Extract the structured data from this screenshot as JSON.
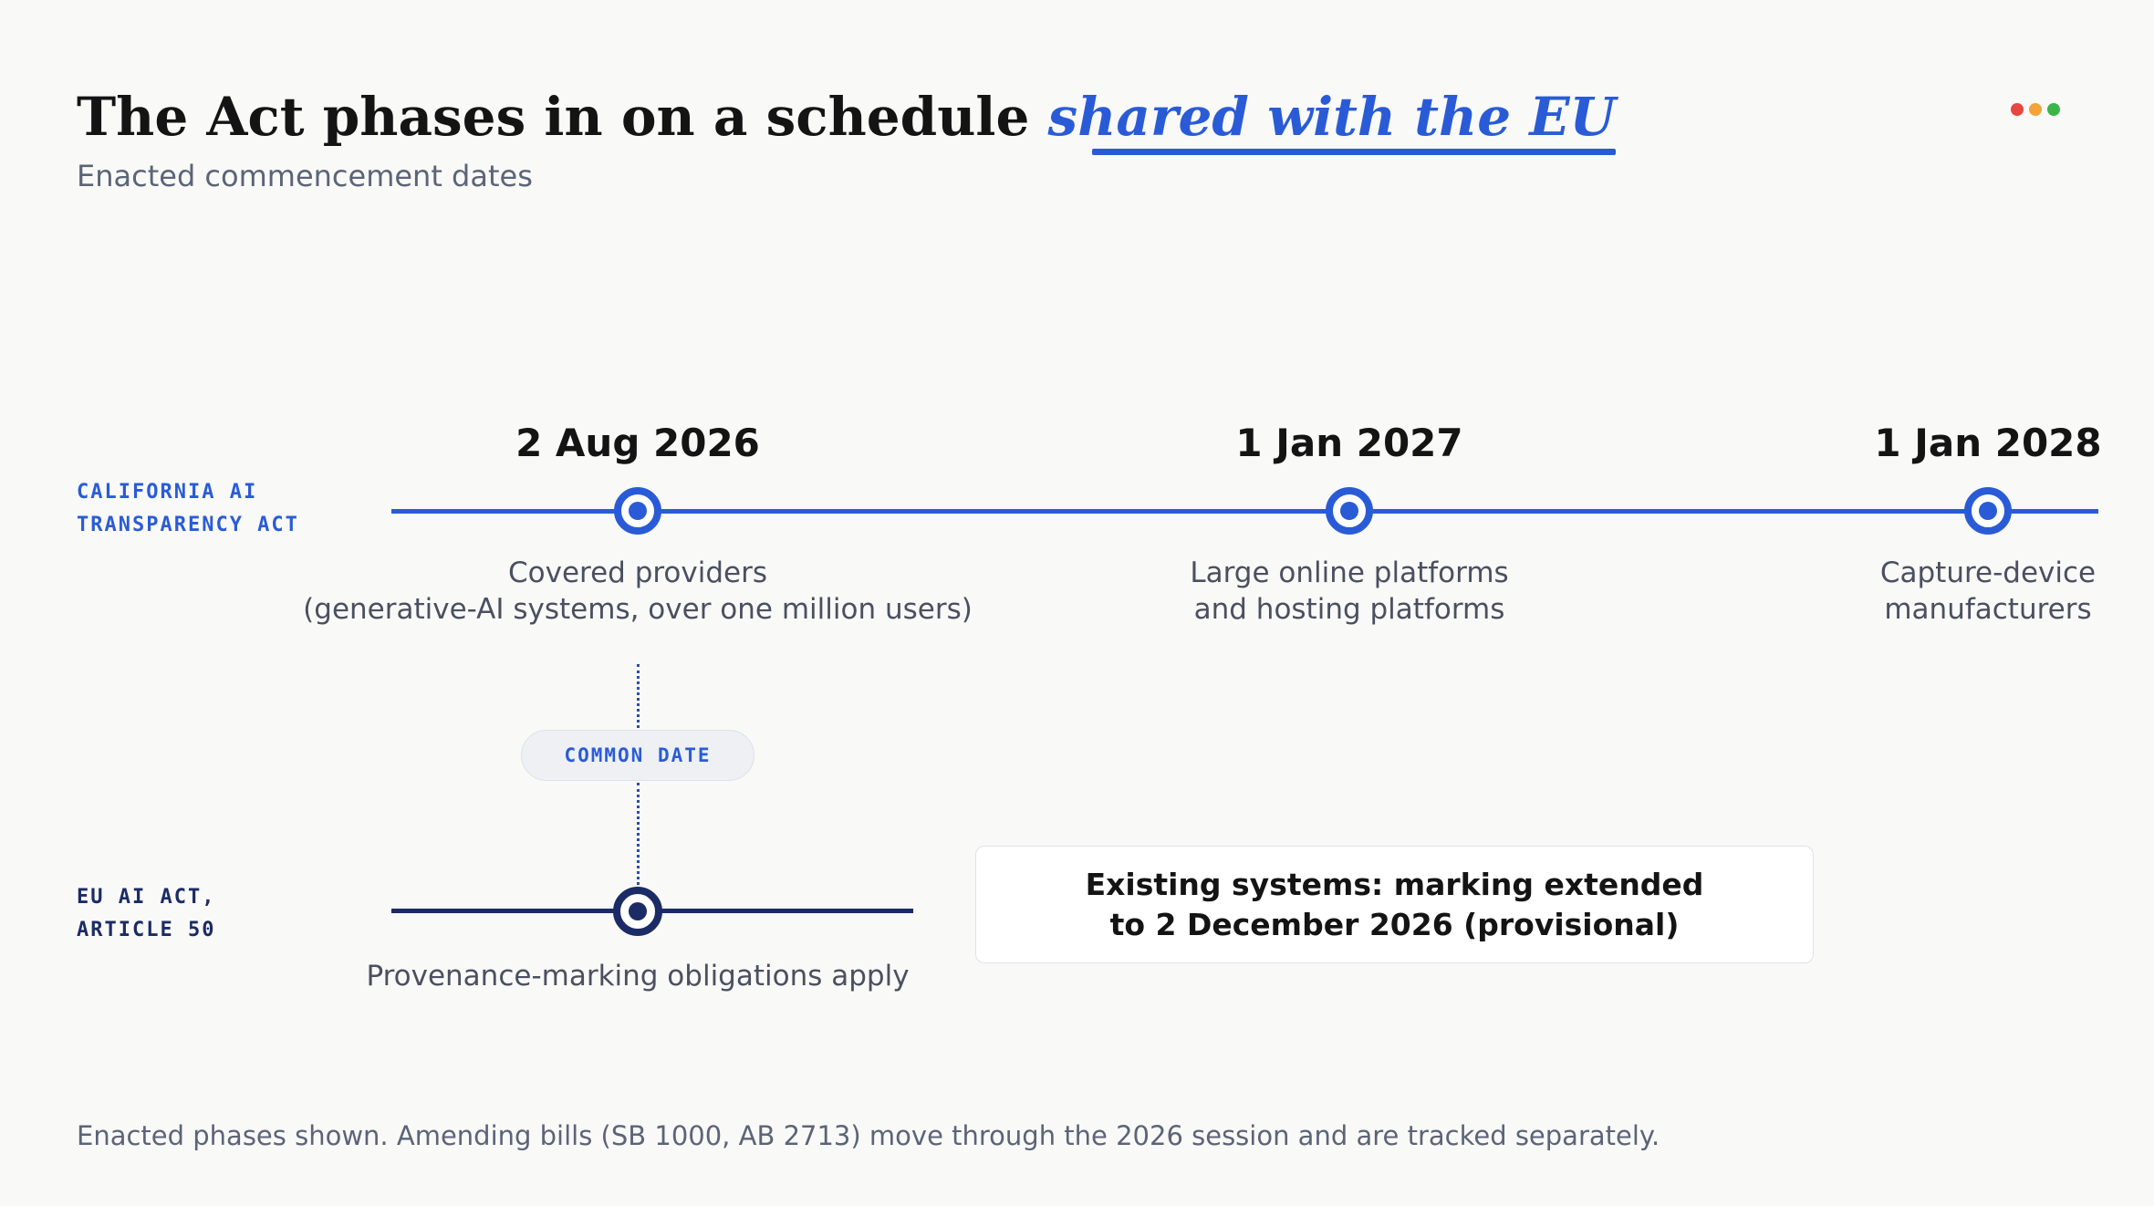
{
  "header": {
    "title_main": "The Act phases in on a schedule ",
    "title_accent": "shared with the EU",
    "subtitle": "Enacted commencement dates"
  },
  "window_dots": [
    {
      "name": "red",
      "color": "#e8473f"
    },
    {
      "name": "orange",
      "color": "#f2a33a"
    },
    {
      "name": "green",
      "color": "#3bb54a"
    }
  ],
  "rows": {
    "california": {
      "label": "CALIFORNIA AI TRANSPARENCY ACT",
      "color": "#2a5bd7",
      "milestones": [
        {
          "date": "2 Aug 2026",
          "description": "Covered providers\n(generative-AI systems, over one million users)"
        },
        {
          "date": "1 Jan 2027",
          "description": "Large online platforms\nand hosting platforms"
        },
        {
          "date": "1 Jan 2028",
          "description": "Capture-device\nmanufacturers"
        }
      ]
    },
    "eu": {
      "label": "EU AI ACT, ARTICLE 50",
      "color": "#1b2b66",
      "milestone_description": "Provenance-marking obligations apply"
    }
  },
  "connector_label": "COMMON DATE",
  "callout": "Existing systems: marking extended\nto 2 December 2026 (provisional)",
  "footnote": "Enacted phases shown. Amending bills (SB 1000, AB 2713) move through the 2026 session and are tracked separately."
}
